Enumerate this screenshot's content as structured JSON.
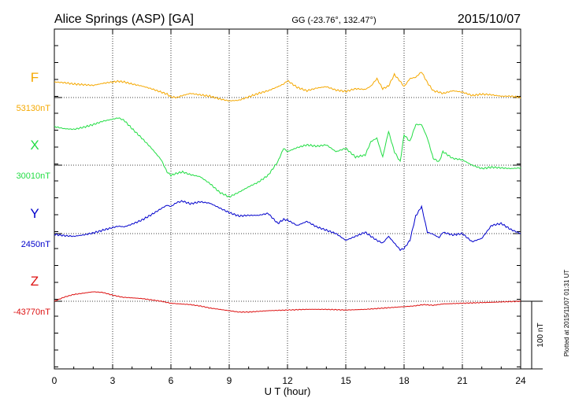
{
  "header": {
    "station": "Alice Springs (ASP)  [GA]",
    "coords": "GG (-23.76°, 132.47°)",
    "date": "2015/10/07"
  },
  "plotted_note": "Plotted at 2015/11/07 01:31  UT",
  "scale_bar_label": "100 nT",
  "chart_data": {
    "type": "line",
    "xlabel": "U T (hour)",
    "xlim": [
      0,
      24
    ],
    "xticks": [
      0,
      3,
      6,
      9,
      12,
      15,
      18,
      21,
      24
    ],
    "xtick_labels": [
      "0",
      "3",
      "6",
      "9",
      "12",
      "15",
      "18",
      "21",
      "24"
    ],
    "grid": true,
    "scale_bar_nT": 100,
    "series": [
      {
        "name": "F",
        "baseline_label": "53130nT",
        "color": "#f5a800",
        "baseline_nT": 53130,
        "x": [
          0,
          0.5,
          1,
          1.5,
          2,
          2.5,
          3,
          3.3,
          3.6,
          4,
          4.5,
          5,
          5.5,
          5.8,
          6,
          6.3,
          6.6,
          7,
          7.5,
          8,
          8.5,
          9,
          9.5,
          10,
          10.5,
          11,
          11.5,
          11.8,
          12,
          12.5,
          13,
          13.5,
          14,
          14.5,
          15,
          15.5,
          16,
          16.3,
          16.6,
          16.9,
          17.2,
          17.5,
          17.8,
          18,
          18.3,
          18.6,
          18.9,
          19.2,
          19.5,
          19.8,
          20,
          20.5,
          21,
          21.5,
          22,
          22.5,
          23,
          23.5,
          24
        ],
        "y": [
          53153,
          53152,
          53150,
          53149,
          53148,
          53151,
          53153,
          53154,
          53153,
          53150,
          53147,
          53143,
          53138,
          53135,
          53131,
          53130,
          53133,
          53136,
          53134,
          53132,
          53128,
          53125,
          53126,
          53131,
          53136,
          53140,
          53146,
          53150,
          53155,
          53145,
          53140,
          53144,
          53146,
          53141,
          53139,
          53143,
          53142,
          53147,
          53158,
          53143,
          53147,
          53164,
          53154,
          53146,
          53158,
          53160,
          53168,
          53152,
          53140,
          53138,
          53136,
          53140,
          53138,
          53133,
          53135,
          53134,
          53132,
          53132,
          53130
        ]
      },
      {
        "name": "X",
        "baseline_label": "30010nT",
        "color": "#22dd44",
        "baseline_nT": 30010,
        "x": [
          0,
          0.5,
          1,
          1.5,
          2,
          2.5,
          3,
          3.3,
          3.6,
          4,
          4.5,
          5,
          5.5,
          5.8,
          6,
          6.3,
          6.6,
          7,
          7.5,
          8,
          8.5,
          9,
          9.5,
          10,
          10.5,
          11,
          11.5,
          11.8,
          12,
          12.5,
          13,
          13.5,
          14,
          14.5,
          15,
          15.5,
          16,
          16.3,
          16.6,
          16.9,
          17.2,
          17.5,
          17.8,
          18,
          18.3,
          18.6,
          18.9,
          19.2,
          19.5,
          19.8,
          20,
          20.5,
          21,
          21.5,
          22,
          22.5,
          23,
          23.5,
          24
        ],
        "y": [
          30067,
          30064,
          30063,
          30066,
          30070,
          30075,
          30078,
          30080,
          30076,
          30064,
          30050,
          30035,
          30018,
          30000,
          29995,
          29998,
          30000,
          29996,
          29993,
          29983,
          29970,
          29963,
          29970,
          29978,
          29985,
          29995,
          30015,
          30035,
          30030,
          30036,
          30040,
          30038,
          30040,
          30030,
          30035,
          30022,
          30025,
          30045,
          30050,
          30022,
          30060,
          30030,
          30015,
          30055,
          30045,
          30070,
          30070,
          30050,
          30020,
          30015,
          30030,
          30020,
          30018,
          30010,
          30005,
          30007,
          30006,
          30005,
          30006
        ]
      },
      {
        "name": "Y",
        "baseline_label": "2450nT",
        "color": "#0000cc",
        "baseline_nT": 2450,
        "x": [
          0,
          0.5,
          1,
          1.5,
          2,
          2.5,
          3,
          3.3,
          3.6,
          4,
          4.5,
          5,
          5.5,
          5.8,
          6,
          6.3,
          6.6,
          7,
          7.5,
          8,
          8.5,
          9,
          9.5,
          10,
          10.5,
          11,
          11.5,
          11.8,
          12,
          12.5,
          13,
          13.5,
          14,
          14.5,
          15,
          15.5,
          16,
          16.3,
          16.6,
          16.9,
          17.2,
          17.5,
          17.8,
          18,
          18.3,
          18.6,
          18.9,
          19.2,
          19.5,
          19.8,
          20,
          20.5,
          21,
          21.5,
          22,
          22.5,
          23,
          23.5,
          24
        ],
        "y": [
          2449,
          2447,
          2446,
          2448,
          2451,
          2455,
          2459,
          2461,
          2460,
          2464,
          2470,
          2478,
          2487,
          2492,
          2490,
          2496,
          2498,
          2494,
          2497,
          2495,
          2488,
          2481,
          2476,
          2477,
          2477,
          2480,
          2465,
          2471,
          2470,
          2462,
          2468,
          2460,
          2455,
          2450,
          2440,
          2446,
          2452,
          2446,
          2440,
          2436,
          2446,
          2436,
          2426,
          2428,
          2440,
          2476,
          2490,
          2452,
          2449,
          2444,
          2452,
          2448,
          2450,
          2438,
          2443,
          2462,
          2465,
          2456,
          2450
        ]
      },
      {
        "name": "Z",
        "baseline_label": "-43770nT",
        "color": "#dd1111",
        "baseline_nT": -43770,
        "x": [
          0,
          0.5,
          1,
          1.5,
          2,
          2.5,
          3,
          3.5,
          4,
          4.5,
          5,
          5.5,
          6,
          6.5,
          7,
          7.5,
          8,
          8.5,
          9,
          9.5,
          10,
          11,
          12,
          13,
          14,
          15,
          16,
          17,
          18,
          18.5,
          19,
          19.5,
          20,
          21,
          22,
          23,
          24
        ],
        "y": [
          -43770,
          -43764,
          -43760,
          -43758,
          -43756,
          -43757,
          -43761,
          -43764,
          -43765,
          -43766,
          -43768,
          -43770,
          -43773,
          -43774,
          -43775,
          -43777,
          -43780,
          -43782,
          -43784,
          -43786,
          -43786,
          -43784,
          -43783,
          -43782,
          -43782,
          -43783,
          -43782,
          -43780,
          -43778,
          -43777,
          -43775,
          -43776,
          -43774,
          -43773,
          -43772,
          -43771,
          -43770
        ]
      }
    ]
  }
}
